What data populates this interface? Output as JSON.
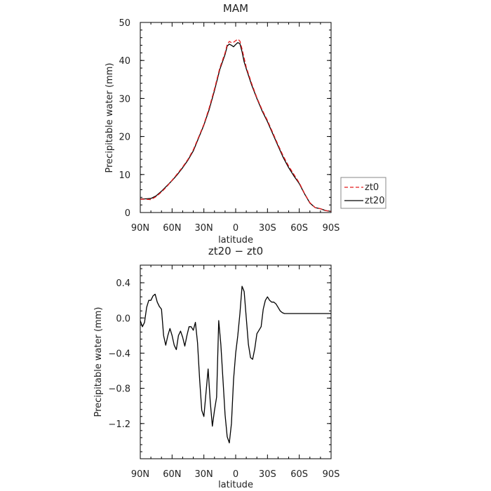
{
  "chart_data": [
    {
      "type": "line",
      "title": "MAM",
      "xlabel": "latitude",
      "ylabel": "Precipitable water  (mm)",
      "x_ticks": [
        "90N",
        "60N",
        "30N",
        "0",
        "30S",
        "60S",
        "90S"
      ],
      "x_tick_values": [
        90,
        60,
        30,
        0,
        -30,
        -60,
        -90
      ],
      "xlim": [
        90,
        -90
      ],
      "ylim": [
        0,
        50
      ],
      "y_ticks": [
        0,
        10,
        20,
        30,
        40,
        50
      ],
      "grid": false,
      "legend_position": "right",
      "series": [
        {
          "name": "zt0",
          "color": "#e41a1c",
          "dash": "dashed",
          "x": [
            90,
            85,
            80,
            75,
            70,
            65,
            60,
            55,
            50,
            45,
            40,
            35,
            30,
            25,
            20,
            15,
            10,
            8,
            6,
            4,
            2,
            0,
            -2,
            -4,
            -6,
            -8,
            -10,
            -15,
            -20,
            -25,
            -30,
            -35,
            -40,
            -45,
            -50,
            -55,
            -60,
            -65,
            -70,
            -75,
            -80,
            -85,
            -90
          ],
          "y": [
            3.5,
            3.5,
            3.4,
            4.2,
            5.4,
            6.8,
            8.5,
            10.2,
            12.0,
            14.0,
            16.5,
            19.8,
            23.2,
            27.5,
            32.5,
            38.0,
            42.0,
            44.2,
            45.0,
            44.7,
            44.8,
            45.2,
            45.6,
            45.1,
            43.0,
            40.6,
            38.2,
            34.0,
            30.2,
            27.0,
            24.2,
            21.0,
            17.8,
            14.8,
            12.2,
            10.0,
            7.8,
            5.0,
            2.6,
            1.3,
            1.0,
            0.5,
            0.3
          ]
        },
        {
          "name": "zt20",
          "color": "#000000",
          "dash": "solid",
          "x": [
            90,
            85,
            80,
            75,
            70,
            65,
            60,
            55,
            50,
            45,
            40,
            35,
            30,
            25,
            20,
            15,
            10,
            8,
            6,
            4,
            2,
            0,
            -2,
            -4,
            -6,
            -8,
            -10,
            -15,
            -20,
            -25,
            -30,
            -35,
            -40,
            -45,
            -50,
            -55,
            -60,
            -65,
            -70,
            -75,
            -80,
            -85,
            -90
          ],
          "y": [
            3.6,
            3.6,
            3.7,
            4.4,
            5.6,
            7.0,
            8.4,
            10.0,
            11.8,
            13.8,
            16.2,
            19.6,
            23.0,
            27.1,
            32.1,
            37.6,
            41.6,
            43.8,
            44.3,
            44.0,
            43.6,
            44.2,
            44.7,
            44.4,
            42.3,
            39.6,
            37.8,
            33.6,
            30.0,
            26.7,
            23.9,
            20.7,
            17.5,
            14.4,
            11.8,
            9.6,
            7.6,
            4.9,
            2.5,
            1.3,
            1.0,
            0.5,
            0.3
          ]
        }
      ]
    },
    {
      "type": "line",
      "title": "zt20 − zt0",
      "xlabel": "latitude",
      "ylabel": "Precipitable water  (mm)",
      "x_ticks": [
        "90N",
        "60N",
        "30N",
        "0",
        "30S",
        "60S",
        "90S"
      ],
      "x_tick_values": [
        90,
        60,
        30,
        0,
        -30,
        -60,
        -90
      ],
      "xlim": [
        90,
        -90
      ],
      "ylim": [
        -1.6,
        0.6
      ],
      "y_ticks": [
        0.4,
        0.0,
        -0.4,
        -0.8,
        -1.2
      ],
      "y_tick_labels": [
        "0.4",
        "0.0",
        "−0.4",
        "−0.8",
        "−1.2"
      ],
      "grid": false,
      "series": [
        {
          "color": "#000000",
          "dash": "solid",
          "x": [
            90,
            88,
            86,
            84,
            82,
            80,
            78,
            76,
            74,
            72,
            70,
            68,
            66,
            64,
            62,
            60,
            58,
            56,
            54,
            52,
            50,
            48,
            46,
            44,
            42,
            40,
            38,
            36,
            34,
            32,
            30,
            28,
            26,
            24,
            22,
            20,
            18,
            16,
            14,
            12,
            10,
            8,
            6,
            4,
            2,
            0,
            -2,
            -4,
            -6,
            -8,
            -10,
            -12,
            -14,
            -16,
            -18,
            -20,
            -22,
            -24,
            -26,
            -28,
            -30,
            -32,
            -34,
            -36,
            -38,
            -40,
            -42,
            -44,
            -46,
            -48,
            -50,
            -52,
            -54,
            -56,
            -58,
            -60,
            -62,
            -64,
            -66,
            -68,
            -70,
            -72,
            -74,
            -76,
            -78,
            -80,
            -82,
            -84,
            -86,
            -88,
            -90
          ],
          "y": [
            -0.03,
            -0.1,
            -0.05,
            0.12,
            0.2,
            0.2,
            0.25,
            0.27,
            0.18,
            0.13,
            0.1,
            -0.2,
            -0.31,
            -0.2,
            -0.12,
            -0.2,
            -0.31,
            -0.36,
            -0.2,
            -0.15,
            -0.22,
            -0.32,
            -0.2,
            -0.1,
            -0.1,
            -0.14,
            -0.05,
            -0.28,
            -0.7,
            -1.05,
            -1.12,
            -0.85,
            -0.58,
            -0.95,
            -1.23,
            -1.05,
            -0.9,
            -0.03,
            -0.3,
            -0.7,
            -1.1,
            -1.35,
            -1.42,
            -1.2,
            -0.7,
            -0.4,
            -0.2,
            0.05,
            0.36,
            0.3,
            0.0,
            -0.3,
            -0.45,
            -0.47,
            -0.35,
            -0.18,
            -0.14,
            -0.1,
            0.1,
            0.2,
            0.24,
            0.2,
            0.18,
            0.18,
            0.16,
            0.12,
            0.08,
            0.06,
            0.05,
            0.05,
            0.05,
            0.05,
            0.05,
            0.05,
            0.05,
            0.05,
            0.05,
            0.05,
            0.05,
            0.05,
            0.05,
            0.05,
            0.05,
            0.05,
            0.05,
            0.05,
            0.05,
            0.05,
            0.05,
            0.05,
            0.05
          ]
        }
      ]
    }
  ]
}
